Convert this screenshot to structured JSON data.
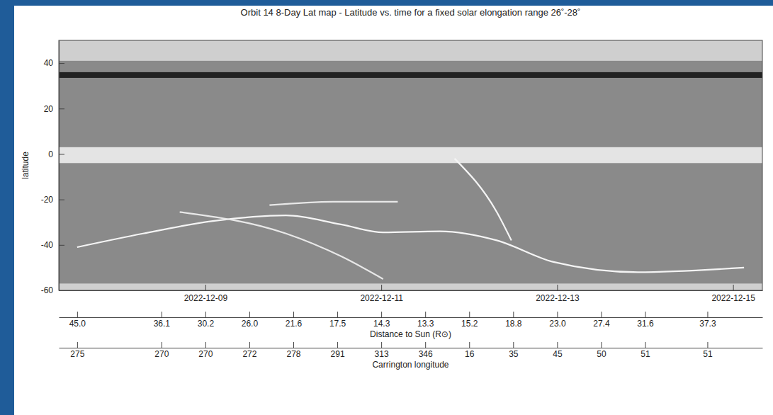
{
  "chart_data": {
    "type": "line",
    "title": "Orbit 14 8-Day Lat map - Latitude vs. time for a fixed solar elongation range 26˚-28˚",
    "y_label": "latitude",
    "xlim": [
      "2022-12-07T08:00",
      "2022-12-15T08:00"
    ],
    "xticks": [
      "2022-12-09",
      "2022-12-11",
      "2022-12-13",
      "2022-12-15"
    ],
    "ylim": [
      -60,
      50
    ],
    "yticks": [
      -60,
      -40,
      -20,
      0,
      20,
      40
    ],
    "bands": [
      {
        "lat": [
          41,
          50
        ],
        "color": "#cfcfcf"
      },
      {
        "lat": [
          33.5,
          36
        ],
        "color": "#222222"
      },
      {
        "lat": [
          -4,
          3
        ],
        "color": "#e4e4e4"
      },
      {
        "lat": [
          -60,
          -57
        ],
        "color": "#cfcfcf"
      }
    ],
    "series": [
      {
        "color": "#f4f4f4",
        "line_style": "solid",
        "x": [
          "2022-12-07T13:00",
          "2022-12-08T07:00",
          "2022-12-09T02:00",
          "2022-12-09T22:00",
          "2022-12-10T13:00",
          "2022-12-11T00:30",
          "2022-12-11T16:00",
          "2022-12-12T07:30",
          "2022-12-12T23:00",
          "2022-12-13T22:00",
          "2022-12-15T03:00"
        ],
        "values": [
          -41,
          -35,
          -29.5,
          -27,
          -31,
          -34.5,
          -34,
          -38,
          -47.5,
          -52,
          -50
        ]
      },
      {
        "color": "#f4f4f4",
        "line_style": "solid",
        "x": [
          "2022-12-11T20:00",
          "2022-12-12T07:30",
          "2022-12-12T11:30"
        ],
        "values": [
          -2,
          -25.5,
          -38
        ]
      },
      {
        "color": "#e8e8e8",
        "line_style": "solid",
        "x": [
          "2022-12-08T17:00",
          "2022-12-09T22:00",
          "2022-12-10T13:00",
          "2022-12-11T00:30"
        ],
        "values": [
          -25.5,
          -35,
          -45,
          -55
        ]
      },
      {
        "color": "#e8e8e8",
        "line_style": "solid",
        "x": [
          "2022-12-09T17:30",
          "2022-12-10T11:00",
          "2022-12-11T04:30"
        ],
        "values": [
          -22.5,
          -21,
          -21
        ]
      }
    ],
    "distance_axis": {
      "title": "Distance to Sun (R⊙)",
      "ticks": [
        {
          "value": "2022-12-07T13:00",
          "label": "45.0"
        },
        {
          "value": "2022-12-08T12:00",
          "label": "36.1"
        },
        {
          "value": "2022-12-09T00:00",
          "label": "30.2"
        },
        {
          "value": "2022-12-09T12:00",
          "label": "26.0"
        },
        {
          "value": "2022-12-10T00:00",
          "label": "21.6"
        },
        {
          "value": "2022-12-10T12:00",
          "label": "17.5"
        },
        {
          "value": "2022-12-11T00:00",
          "label": "14.3"
        },
        {
          "value": "2022-12-11T12:00",
          "label": "13.3"
        },
        {
          "value": "2022-12-12T00:00",
          "label": "15.2"
        },
        {
          "value": "2022-12-12T12:00",
          "label": "18.8"
        },
        {
          "value": "2022-12-13T00:00",
          "label": "23.0"
        },
        {
          "value": "2022-12-13T12:00",
          "label": "27.4"
        },
        {
          "value": "2022-12-14T00:00",
          "label": "31.6"
        },
        {
          "value": "2022-12-14T17:00",
          "label": "37.3"
        }
      ]
    },
    "carrington_axis": {
      "title": "Carrington longitude",
      "ticks": [
        {
          "value": "2022-12-07T13:00",
          "label": "275"
        },
        {
          "value": "2022-12-08T12:00",
          "label": "270"
        },
        {
          "value": "2022-12-09T00:00",
          "label": "270"
        },
        {
          "value": "2022-12-09T12:00",
          "label": "272"
        },
        {
          "value": "2022-12-10T00:00",
          "label": "278"
        },
        {
          "value": "2022-12-10T12:00",
          "label": "291"
        },
        {
          "value": "2022-12-11T00:00",
          "label": "313"
        },
        {
          "value": "2022-12-11T12:00",
          "label": "346"
        },
        {
          "value": "2022-12-12T00:00",
          "label": "16"
        },
        {
          "value": "2022-12-12T12:00",
          "label": "35"
        },
        {
          "value": "2022-12-13T00:00",
          "label": "45"
        },
        {
          "value": "2022-12-13T12:00",
          "label": "50"
        },
        {
          "value": "2022-12-14T00:00",
          "label": "51"
        },
        {
          "value": "2022-12-14T17:00",
          "label": "51"
        }
      ]
    }
  }
}
